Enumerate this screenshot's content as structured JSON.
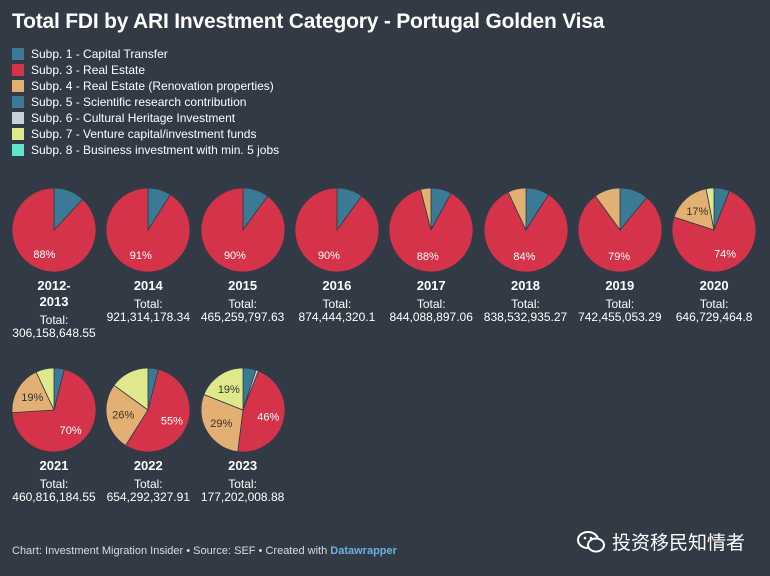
{
  "title": "Total FDI by ARI Investment Category - Portugal Golden Visa",
  "total_label": "Total:",
  "footer": {
    "text": "Chart: Investment Migration Insider • Source: SEF • Created with ",
    "link": "Datawrapper"
  },
  "watermark": "投资移民知情者",
  "colors": {
    "subp1": "#3a7a94",
    "subp3": "#d5334a",
    "subp4": "#e2b072",
    "subp5": "#3a7a94",
    "subp6": "#c6d2d9",
    "subp7": "#dfe88a",
    "subp8": "#5fe6c8",
    "pie_stroke": "#323a46"
  },
  "chart_data": {
    "type": "pie",
    "title": "Total FDI by ARI Investment Category - Portugal Golden Visa",
    "legend": [
      {
        "key": "subp1",
        "label": "Subp. 1 - Capital Transfer"
      },
      {
        "key": "subp3",
        "label": "Subp. 3 - Real Estate"
      },
      {
        "key": "subp4",
        "label": "Subp. 4 - Real Estate (Renovation properties)"
      },
      {
        "key": "subp5",
        "label": "Subp. 5 - Scientific research contribution"
      },
      {
        "key": "subp6",
        "label": "Subp. 6 - Cultural Heritage Investment"
      },
      {
        "key": "subp7",
        "label": "Subp. 7 - Venture capital/investment funds"
      },
      {
        "key": "subp8",
        "label": "Subp. 8 - Business investment with min. 5 jobs"
      }
    ],
    "pies": [
      {
        "year": "2012-\n2013",
        "total": "306,158,648.55",
        "slices": [
          {
            "key": "subp1",
            "value": 12
          },
          {
            "key": "subp3",
            "value": 88,
            "label": "88%"
          }
        ]
      },
      {
        "year": "2014",
        "total": "921,314,178.34",
        "slices": [
          {
            "key": "subp1",
            "value": 9
          },
          {
            "key": "subp3",
            "value": 91,
            "label": "91%"
          }
        ]
      },
      {
        "year": "2015",
        "total": "465,259,797.63",
        "slices": [
          {
            "key": "subp1",
            "value": 10
          },
          {
            "key": "subp3",
            "value": 90,
            "label": "90%"
          }
        ]
      },
      {
        "year": "2016",
        "total": "874,444,320.1",
        "slices": [
          {
            "key": "subp1",
            "value": 10
          },
          {
            "key": "subp3",
            "value": 90,
            "label": "90%"
          }
        ]
      },
      {
        "year": "2017",
        "total": "844,088,897.06",
        "slices": [
          {
            "key": "subp1",
            "value": 8
          },
          {
            "key": "subp3",
            "value": 88,
            "label": "88%"
          },
          {
            "key": "subp4",
            "value": 4
          }
        ]
      },
      {
        "year": "2018",
        "total": "838,532,935.27",
        "slices": [
          {
            "key": "subp1",
            "value": 9
          },
          {
            "key": "subp3",
            "value": 84,
            "label": "84%"
          },
          {
            "key": "subp4",
            "value": 7
          }
        ]
      },
      {
        "year": "2019",
        "total": "742,455,053.29",
        "slices": [
          {
            "key": "subp1",
            "value": 11
          },
          {
            "key": "subp3",
            "value": 79,
            "label": "79%"
          },
          {
            "key": "subp4",
            "value": 10
          }
        ]
      },
      {
        "year": "2020",
        "total": "646,729,464.8",
        "slices": [
          {
            "key": "subp1",
            "value": 6
          },
          {
            "key": "subp3",
            "value": 74,
            "label": "74%"
          },
          {
            "key": "subp4",
            "value": 17,
            "label": "17%"
          },
          {
            "key": "subp7",
            "value": 3
          }
        ]
      },
      {
        "year": "2021",
        "total": "460,816,184.55",
        "slices": [
          {
            "key": "subp1",
            "value": 4
          },
          {
            "key": "subp3",
            "value": 70,
            "label": "70%"
          },
          {
            "key": "subp4",
            "value": 19,
            "label": "19%"
          },
          {
            "key": "subp7",
            "value": 7
          }
        ]
      },
      {
        "year": "2022",
        "total": "654,292,327.91",
        "slices": [
          {
            "key": "subp1",
            "value": 4
          },
          {
            "key": "subp3",
            "value": 55,
            "label": "55%"
          },
          {
            "key": "subp4",
            "value": 26,
            "label": "26%"
          },
          {
            "key": "subp7",
            "value": 15
          }
        ]
      },
      {
        "year": "2023",
        "total": "177,202,008.88",
        "slices": [
          {
            "key": "subp1",
            "value": 5
          },
          {
            "key": "subp6",
            "value": 1
          },
          {
            "key": "subp3",
            "value": 46,
            "label": "46%"
          },
          {
            "key": "subp4",
            "value": 29,
            "label": "29%"
          },
          {
            "key": "subp7",
            "value": 19,
            "label": "19%"
          }
        ]
      }
    ]
  }
}
